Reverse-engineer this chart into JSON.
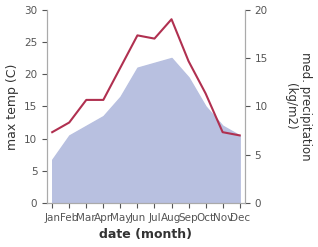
{
  "months": [
    "Jan",
    "Feb",
    "Mar",
    "Apr",
    "May",
    "Jun",
    "Jul",
    "Aug",
    "Sep",
    "Oct",
    "Nov",
    "Dec"
  ],
  "month_positions": [
    0,
    1,
    2,
    3,
    4,
    5,
    6,
    7,
    8,
    9,
    10,
    11
  ],
  "max_temp": [
    11,
    12.5,
    16,
    16,
    21,
    26,
    25.5,
    28.5,
    22,
    17,
    11,
    10.5
  ],
  "precipitation_kg": [
    4.5,
    7,
    8,
    9,
    11,
    14,
    14.5,
    15,
    13,
    10,
    8,
    7
  ],
  "temp_color": "#b03050",
  "precip_fill_color": "#b8c0e0",
  "temp_ylim": [
    0,
    30
  ],
  "precip_ylim": [
    0,
    20
  ],
  "scale_factor": 1.5,
  "xlabel": "date (month)",
  "ylabel_left": "max temp (C)",
  "ylabel_right": "med. precipitation\n(kg/m2)",
  "bg_color": "#ffffff",
  "label_fontsize": 9,
  "tick_fontsize": 7.5
}
